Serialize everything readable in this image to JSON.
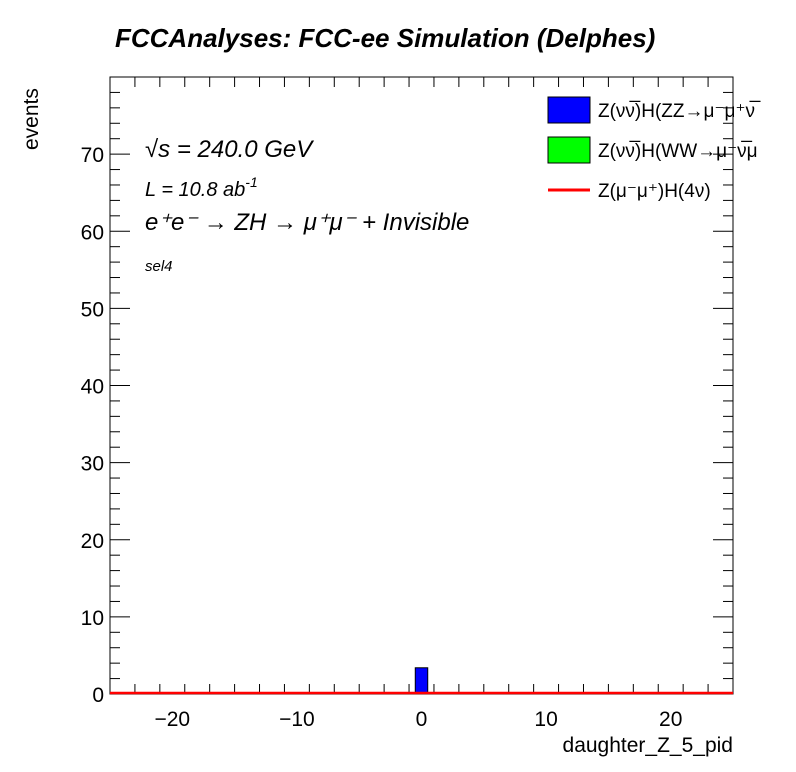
{
  "chart_data": {
    "type": "bar",
    "title": "FCCAnalyses: FCC-ee Simulation (Delphes)",
    "xlabel": "daughter_Z_5_pid",
    "ylabel": "events",
    "xlim": [
      -25,
      25
    ],
    "ylim": [
      0,
      80
    ],
    "x_ticks": [
      -20,
      -10,
      0,
      10,
      20
    ],
    "x_tick_labels": [
      "−20",
      "−10",
      "0",
      "10",
      "20"
    ],
    "y_ticks": [
      0,
      10,
      20,
      30,
      40,
      50,
      60,
      70
    ],
    "y_tick_labels": [
      "0",
      "10",
      "20",
      "30",
      "40",
      "50",
      "60",
      "70"
    ],
    "bin_width": 1,
    "series": [
      {
        "name": "Z(νν̅)H(ZZ→μ⁻μ⁺ν̅",
        "style": "filled",
        "color": "#0000ff",
        "bins": [
          {
            "x": 0,
            "y": 3.4
          }
        ]
      },
      {
        "name": "Z(νν̅)H(WW→μ⁻ν̅μ",
        "style": "filled",
        "color": "#00ff00",
        "bins": []
      },
      {
        "name": "Z(μ⁻μ⁺)H(4ν)",
        "style": "line",
        "color": "#ff0000",
        "bins": [
          {
            "x_from": -25,
            "x_to": 25,
            "y": 0
          }
        ]
      }
    ],
    "legend": "top-right",
    "grid": false,
    "annotations": {
      "energy": "√s = 240.0 GeV",
      "lumi_prefix": "L = 10.8 ab",
      "lumi_exp": "-1",
      "process": "e⁺e⁻ → ZH → μ⁺μ⁻ + Invisible",
      "selection": "sel4"
    }
  }
}
